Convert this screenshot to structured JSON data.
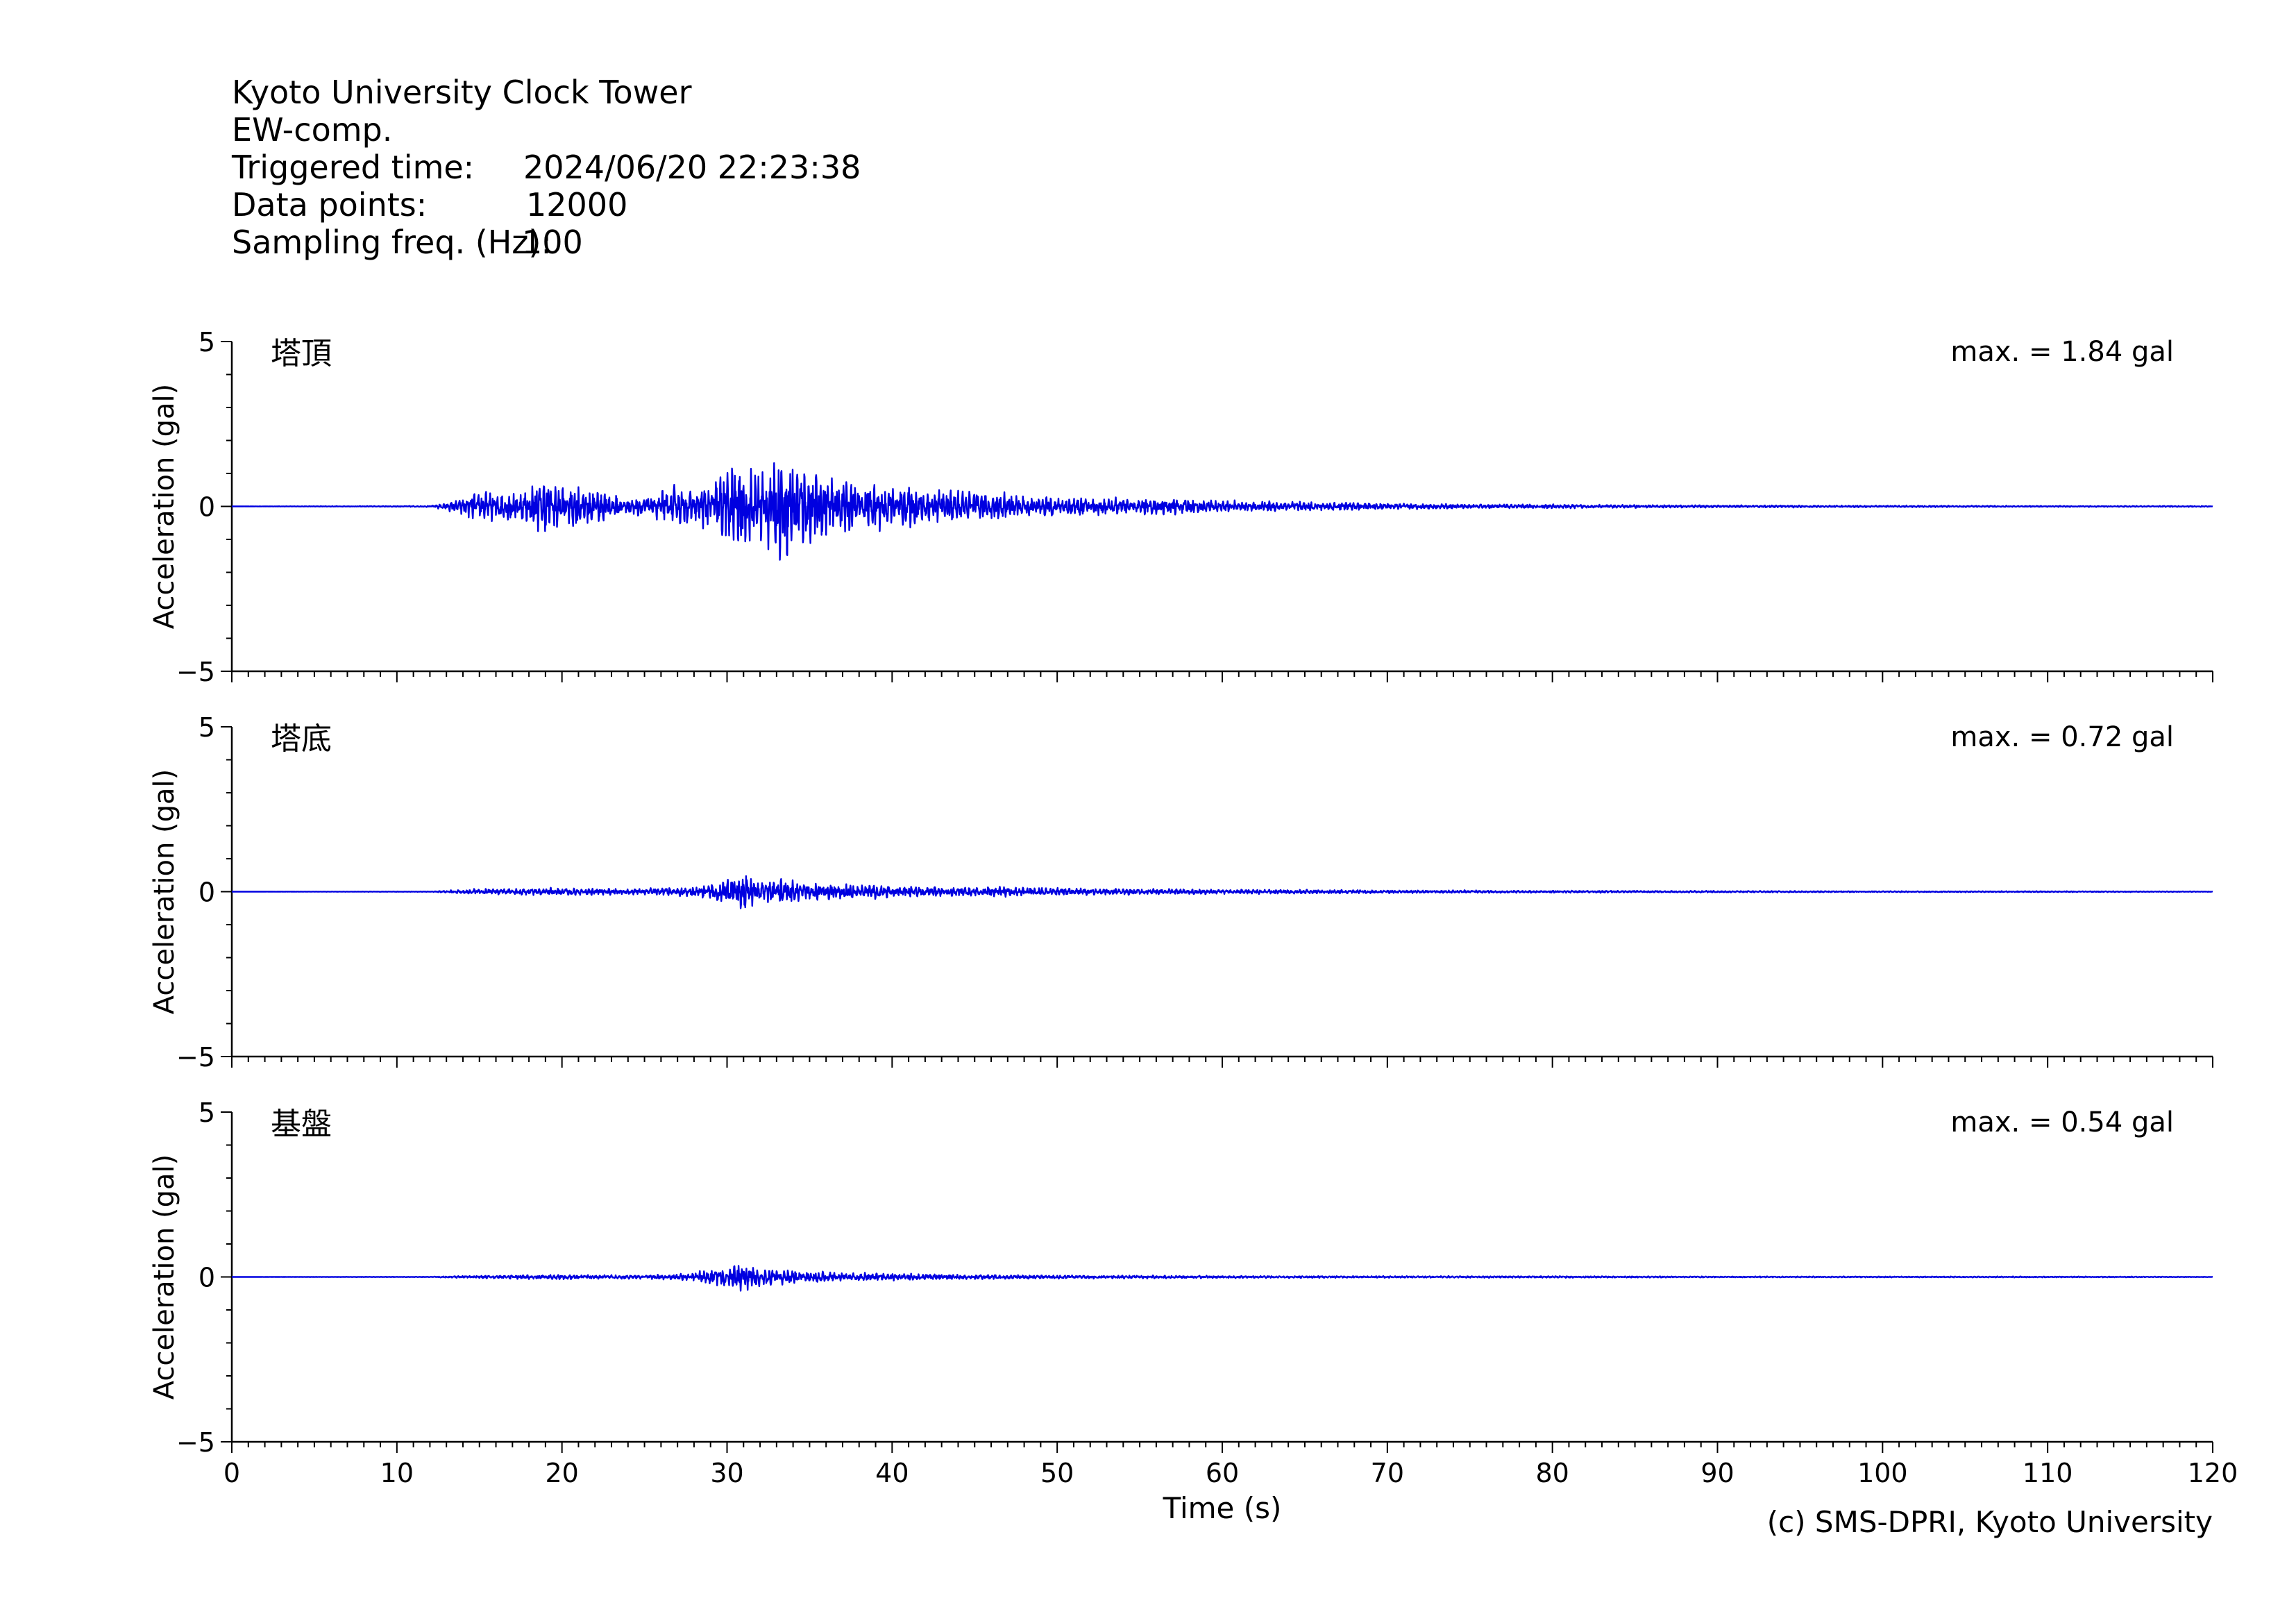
{
  "header": {
    "station": "Kyoto University Clock Tower",
    "component": "EW-comp.",
    "triggered_label": "Triggered time:",
    "triggered_value": "2024/06/20 22:23:38",
    "points_label": "Data points:",
    "points_value": "12000",
    "freq_label": "Sampling freq. (Hz):",
    "freq_value": "100"
  },
  "credit": "(c) SMS-DPRI, Kyoto University",
  "colors": {
    "trace": "#0000e0",
    "axis": "#000000"
  },
  "chart_data": [
    {
      "type": "line",
      "name": "塔頂",
      "max_label": "max. = 1.84 gal",
      "ylabel": "Acceleration (gal)",
      "ylim": [
        -5,
        5
      ],
      "yticks": [
        -5,
        0,
        5
      ],
      "xlim": [
        0,
        120
      ],
      "envelope": {
        "t": [
          0,
          12,
          13,
          14,
          15,
          16,
          17,
          18,
          19,
          20,
          21,
          22,
          23,
          24,
          25,
          26,
          27,
          28,
          29,
          30,
          30.5,
          31,
          31.5,
          32,
          32.5,
          33,
          33.5,
          34,
          35,
          36,
          37,
          38,
          39,
          40,
          42,
          44,
          46,
          48,
          50,
          52,
          55,
          58,
          60,
          62,
          65,
          68,
          70,
          75,
          80,
          85,
          90,
          100,
          110,
          120
        ],
        "amp": [
          0,
          0.02,
          0.12,
          0.3,
          0.5,
          0.45,
          0.55,
          0.6,
          0.9,
          0.8,
          0.75,
          0.65,
          0.45,
          0.3,
          0.35,
          0.55,
          0.7,
          0.55,
          0.8,
          1.4,
          1.45,
          1.4,
          1.2,
          1.3,
          1.4,
          1.6,
          1.84,
          1.5,
          1.2,
          1.0,
          0.95,
          0.85,
          0.8,
          0.7,
          0.65,
          0.55,
          0.5,
          0.4,
          0.35,
          0.3,
          0.28,
          0.25,
          0.2,
          0.18,
          0.15,
          0.13,
          0.1,
          0.08,
          0.07,
          0.05,
          0.04,
          0.03,
          0.02,
          0.02
        ]
      }
    },
    {
      "type": "line",
      "name": "塔底",
      "max_label": "max. = 0.72 gal",
      "ylabel": "Acceleration (gal)",
      "ylim": [
        -5,
        5
      ],
      "yticks": [
        -5,
        0,
        5
      ],
      "xlim": [
        0,
        120
      ],
      "envelope": {
        "t": [
          0,
          12,
          13,
          14,
          16,
          18,
          20,
          22,
          24,
          26,
          28,
          29,
          30,
          30.5,
          31,
          31.5,
          32,
          33,
          33.5,
          34,
          35,
          36,
          38,
          40,
          42,
          44,
          46,
          48,
          50,
          55,
          60,
          65,
          70,
          80,
          90,
          100,
          110,
          120
        ],
        "amp": [
          0,
          0.01,
          0.04,
          0.08,
          0.1,
          0.12,
          0.13,
          0.12,
          0.1,
          0.12,
          0.2,
          0.28,
          0.45,
          0.55,
          0.72,
          0.5,
          0.35,
          0.4,
          0.45,
          0.35,
          0.3,
          0.3,
          0.25,
          0.2,
          0.18,
          0.15,
          0.17,
          0.15,
          0.13,
          0.1,
          0.08,
          0.07,
          0.05,
          0.04,
          0.03,
          0.02,
          0.02,
          0.01
        ]
      }
    },
    {
      "type": "line",
      "name": "基盤",
      "max_label": "max. = 0.54 gal",
      "ylabel": "Acceleration (gal)",
      "xlabel": "Time (s)",
      "ylim": [
        -5,
        5
      ],
      "yticks": [
        -5,
        0,
        5
      ],
      "xlim": [
        0,
        120
      ],
      "xticks": [
        0,
        10,
        20,
        30,
        40,
        50,
        60,
        70,
        80,
        90,
        100,
        110,
        120
      ],
      "envelope": {
        "t": [
          0,
          12,
          13,
          15,
          18,
          20,
          22,
          25,
          27,
          28,
          29,
          30,
          30.5,
          31,
          31.5,
          32,
          33,
          34,
          35,
          37,
          40,
          43,
          45,
          50,
          55,
          60,
          70,
          80,
          90,
          100,
          110,
          120
        ],
        "amp": [
          0,
          0.01,
          0.03,
          0.05,
          0.07,
          0.08,
          0.07,
          0.06,
          0.1,
          0.15,
          0.25,
          0.35,
          0.45,
          0.54,
          0.4,
          0.3,
          0.28,
          0.25,
          0.2,
          0.15,
          0.12,
          0.1,
          0.08,
          0.06,
          0.05,
          0.04,
          0.03,
          0.03,
          0.02,
          0.02,
          0.02,
          0.01
        ]
      }
    }
  ]
}
